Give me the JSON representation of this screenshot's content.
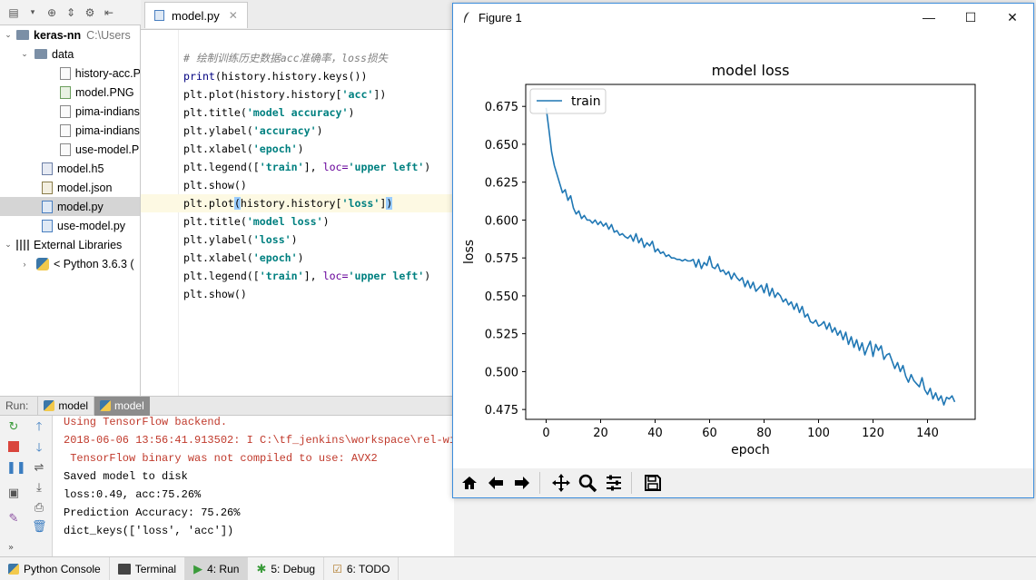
{
  "project": {
    "root_name": "keras-nn",
    "root_path": "C:\\Users",
    "folder": "data",
    "files": [
      "history-acc.P",
      "model.PNG",
      "pima-indians",
      "pima-indians",
      "use-model.P"
    ],
    "root_files": [
      "model.h5",
      "model.json",
      "model.py",
      "use-model.py"
    ],
    "external": "External Libraries",
    "python": "< Python 3.6.3 ("
  },
  "editor": {
    "tab_label": "model.py",
    "comment": "# 绘制训练历史数据acc准确率，loss损失",
    "lines": [
      {
        "a": "print",
        "b": "(history.history.keys())"
      },
      {
        "a": "plt.plot(history.history[",
        "s": "'acc'",
        "b": "])"
      },
      {
        "a": "plt.title(",
        "s": "'model accuracy'",
        "b": ")"
      },
      {
        "a": "plt.ylabel(",
        "s": "'accuracy'",
        "b": ")"
      },
      {
        "a": "plt.xlabel(",
        "s": "'epoch'",
        "b": ")"
      },
      {
        "a": "plt.legend([",
        "s": "'train'",
        "b": "], ",
        "k": "loc=",
        "s2": "'upper left'",
        "b2": ")"
      },
      {
        "a": "plt.show()"
      },
      {
        "a": "plt.plot",
        "p": "(",
        "a2": "history.history[",
        "s": "'loss'",
        "b": "]",
        "p2": ")"
      },
      {
        "a": "plt.title(",
        "s": "'model loss'",
        "b": ")"
      },
      {
        "a": "plt.ylabel(",
        "s": "'loss'",
        "b": ")"
      },
      {
        "a": "plt.xlabel(",
        "s": "'epoch'",
        "b": ")"
      },
      {
        "a": "plt.legend([",
        "s": "'train'",
        "b": "], ",
        "k": "loc=",
        "s2": "'upper left'",
        "b2": ")"
      },
      {
        "a": "plt.show()"
      }
    ]
  },
  "run": {
    "label": "Run:",
    "tabs": [
      "model",
      "model"
    ],
    "console": [
      "Using TensorFlow backend.",
      "2018-06-06 13:56:41.913502: I C:\\tf_jenkins\\workspace\\rel-win",
      " TensorFlow binary was not compiled to use: AVX2",
      "Saved model to disk",
      "loss:0.49, acc:75.26%",
      "Prediction Accuracy: 75.26%",
      "dict_keys(['loss', 'acc'])"
    ]
  },
  "bottom_tools": [
    {
      "label": "Python Console",
      "icon": "python-console-icon"
    },
    {
      "label": "Terminal",
      "icon": "terminal-icon"
    },
    {
      "label": "4: Run",
      "icon": "run-icon"
    },
    {
      "label": "5: Debug",
      "icon": "debug-icon"
    },
    {
      "label": "6: TODO",
      "icon": "todo-icon"
    }
  ],
  "figure": {
    "window_title": "Figure 1",
    "toolbar_icons": [
      "home-icon",
      "back-icon",
      "forward-icon",
      "pan-icon",
      "zoom-icon",
      "configure-subplots-icon",
      "save-icon"
    ]
  },
  "chart_data": {
    "type": "line",
    "title": "model loss",
    "xlabel": "epoch",
    "ylabel": "loss",
    "xlim": [
      -7.5,
      157.5
    ],
    "ylim": [
      0.4685,
      0.6895
    ],
    "xticks": [
      0,
      20,
      40,
      60,
      80,
      100,
      120,
      140
    ],
    "yticks": [
      0.475,
      0.5,
      0.525,
      0.55,
      0.575,
      0.6,
      0.625,
      0.65,
      0.675
    ],
    "ytick_labels": [
      "0.475",
      "0.500",
      "0.525",
      "0.550",
      "0.575",
      "0.600",
      "0.625",
      "0.650",
      "0.675"
    ],
    "legend": {
      "loc": "upper left",
      "entries": [
        "train"
      ]
    },
    "series": [
      {
        "name": "train",
        "color": "#1f77b4",
        "x_start": 0,
        "values": [
          0.674,
          0.66,
          0.645,
          0.636,
          0.63,
          0.624,
          0.618,
          0.62,
          0.613,
          0.616,
          0.608,
          0.604,
          0.606,
          0.601,
          0.603,
          0.6,
          0.6,
          0.598,
          0.6,
          0.597,
          0.599,
          0.596,
          0.598,
          0.594,
          0.597,
          0.592,
          0.593,
          0.59,
          0.591,
          0.589,
          0.588,
          0.59,
          0.586,
          0.591,
          0.585,
          0.588,
          0.582,
          0.585,
          0.583,
          0.586,
          0.579,
          0.581,
          0.578,
          0.579,
          0.576,
          0.577,
          0.575,
          0.575,
          0.574,
          0.574,
          0.573,
          0.574,
          0.573,
          0.573,
          0.574,
          0.569,
          0.574,
          0.568,
          0.572,
          0.57,
          0.576,
          0.569,
          0.568,
          0.571,
          0.566,
          0.567,
          0.564,
          0.566,
          0.561,
          0.565,
          0.562,
          0.56,
          0.562,
          0.556,
          0.56,
          0.555,
          0.559,
          0.553,
          0.555,
          0.557,
          0.552,
          0.558,
          0.55,
          0.555,
          0.549,
          0.552,
          0.55,
          0.546,
          0.548,
          0.544,
          0.546,
          0.541,
          0.545,
          0.539,
          0.543,
          0.536,
          0.538,
          0.533,
          0.532,
          0.534,
          0.53,
          0.531,
          0.533,
          0.528,
          0.532,
          0.526,
          0.529,
          0.524,
          0.527,
          0.521,
          0.526,
          0.518,
          0.523,
          0.516,
          0.521,
          0.514,
          0.519,
          0.511,
          0.516,
          0.52,
          0.51,
          0.518,
          0.514,
          0.517,
          0.508,
          0.511,
          0.512,
          0.507,
          0.502,
          0.506,
          0.5,
          0.504,
          0.497,
          0.493,
          0.498,
          0.494,
          0.492,
          0.49,
          0.496,
          0.488,
          0.485,
          0.489,
          0.482,
          0.486,
          0.481,
          0.484,
          0.478,
          0.483,
          0.482,
          0.484,
          0.48
        ]
      }
    ]
  }
}
